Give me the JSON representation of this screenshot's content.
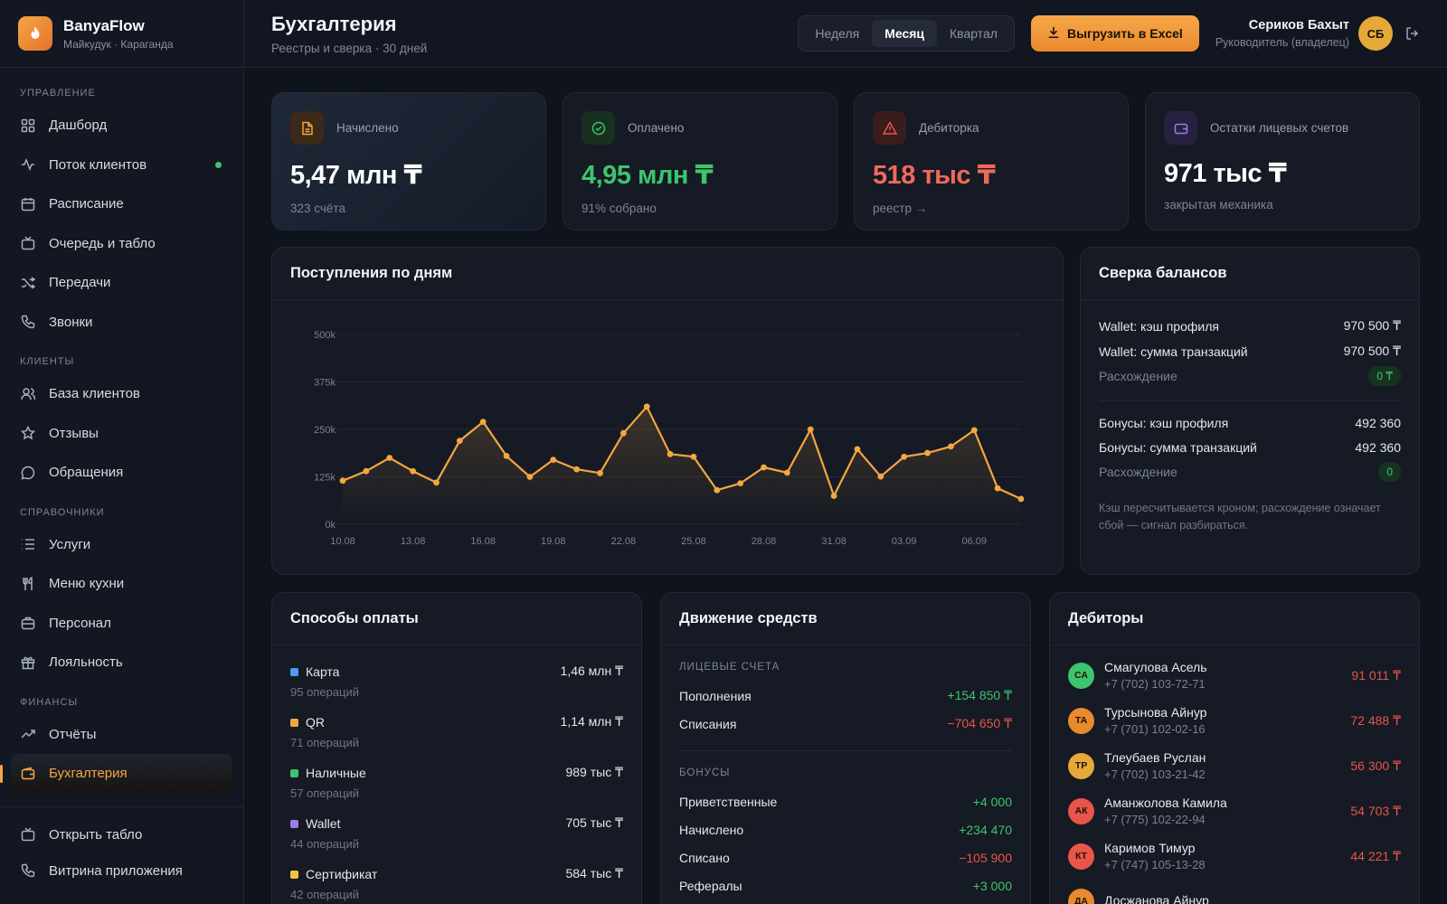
{
  "brand": {
    "name": "BanyaFlow",
    "sub": "Майкудук · Караганда"
  },
  "nav": {
    "sections": [
      {
        "title": "УПРАВЛЕНИЕ",
        "items": [
          "Дашборд",
          "Поток клиентов",
          "Расписание",
          "Очередь и табло",
          "Передачи",
          "Звонки"
        ]
      },
      {
        "title": "КЛИЕНТЫ",
        "items": [
          "База клиентов",
          "Отзывы",
          "Обращения"
        ]
      },
      {
        "title": "СПРАВОЧНИКИ",
        "items": [
          "Услуги",
          "Меню кухни",
          "Персонал",
          "Лояльность"
        ]
      },
      {
        "title": "ФИНАНСЫ",
        "items": [
          "Отчёты",
          "Бухгалтерия"
        ]
      }
    ],
    "bottom": [
      "Открыть табло",
      "Витрина приложения"
    ]
  },
  "header": {
    "title": "Бухгалтерия",
    "subtitle": "Реестры и сверка · 30 дней",
    "periods": [
      "Неделя",
      "Месяц",
      "Квартал"
    ],
    "selected_period": "Месяц",
    "export_label": "Выгрузить в Excel"
  },
  "user": {
    "name": "Сериков Бахыт",
    "role": "Руководитель (владелец)",
    "initials": "СБ"
  },
  "kpis": [
    {
      "label": "Начислено",
      "value": "5,47 млн ₸",
      "note": "323 счёта"
    },
    {
      "label": "Оплачено",
      "value": "4,95 млн ₸",
      "note": "91% собрано"
    },
    {
      "label": "Дебиторка",
      "value": "518 тыс ₸",
      "note": "реестр →"
    },
    {
      "label": "Остатки лицевых счетов",
      "value": "971 тыс ₸",
      "note": "закрытая механика"
    }
  ],
  "chart_title": "Поступления по дням",
  "chart_data": {
    "type": "line",
    "x": [
      "10.08",
      "11.08",
      "12.08",
      "13.08",
      "14.08",
      "15.08",
      "16.08",
      "17.08",
      "18.08",
      "19.08",
      "20.08",
      "21.08",
      "22.08",
      "23.08",
      "24.08",
      "25.08",
      "26.08",
      "27.08",
      "28.08",
      "29.08",
      "30.08",
      "31.08",
      "01.09",
      "02.09",
      "03.09",
      "04.09",
      "05.09",
      "06.09",
      "07.09",
      "08.09"
    ],
    "values": [
      115000,
      140000,
      175000,
      140000,
      110000,
      220000,
      270000,
      180000,
      125000,
      170000,
      145000,
      135000,
      240000,
      310000,
      185000,
      178000,
      90000,
      108000,
      150000,
      136000,
      250000,
      75000,
      198000,
      126000,
      178000,
      188000,
      205000,
      248000,
      95000,
      67000
    ],
    "ylim": [
      0,
      500000
    ],
    "yticks": [
      "0k",
      "125k",
      "250k",
      "375k",
      "500k"
    ],
    "xticks": [
      "10.08",
      "13.08",
      "16.08",
      "19.08",
      "22.08",
      "25.08",
      "28.08",
      "31.08",
      "03.09",
      "06.09"
    ],
    "color": "#f4a640"
  },
  "recon": {
    "title": "Сверка балансов",
    "wallet": [
      {
        "label": "Wallet: кэш профиля",
        "value": "970 500 ₸"
      },
      {
        "label": "Wallet: сумма транзакций",
        "value": "970 500 ₸"
      }
    ],
    "wallet_diff": {
      "label": "Расхождение",
      "value": "0 ₸"
    },
    "bonus": [
      {
        "label": "Бонусы: кэш профиля",
        "value": "492 360"
      },
      {
        "label": "Бонусы: сумма транзакций",
        "value": "492 360"
      }
    ],
    "bonus_diff": {
      "label": "Расхождение",
      "value": "0"
    },
    "note": "Кэш пересчитывается кроном; расхождение означает сбой — сигнал разбираться."
  },
  "payments": {
    "title": "Способы оплаты",
    "items": [
      {
        "name": "Карта",
        "value": "1,46 млн ₸",
        "ops": "95 операций",
        "color": "#4a9af0"
      },
      {
        "name": "QR",
        "value": "1,14 млн ₸",
        "ops": "71 операций",
        "color": "#f4a640"
      },
      {
        "name": "Наличные",
        "value": "989 тыс ₸",
        "ops": "57 операций",
        "color": "#3ec46d"
      },
      {
        "name": "Wallet",
        "value": "705 тыс ₸",
        "ops": "44 операций",
        "color": "#9b7ee8"
      },
      {
        "name": "Сертификат",
        "value": "584 тыс ₸",
        "ops": "42 операций",
        "color": "#f0c43a"
      }
    ]
  },
  "flow": {
    "title": "Движение средств",
    "accounts_label": "ЛИЦЕВЫЕ СЧЕТА",
    "accounts": [
      {
        "label": "Пополнения",
        "value": "+154 850 ₸",
        "sign": "pos"
      },
      {
        "label": "Списания",
        "value": "−704 650 ₸",
        "sign": "neg"
      }
    ],
    "bonus_label": "БОНУСЫ",
    "bonus": [
      {
        "label": "Приветственные",
        "value": "+4 000",
        "sign": "pos"
      },
      {
        "label": "Начислено",
        "value": "+234 470",
        "sign": "pos"
      },
      {
        "label": "Списано",
        "value": "−105 900",
        "sign": "neg"
      },
      {
        "label": "Рефералы",
        "value": "+3 000",
        "sign": "pos"
      }
    ]
  },
  "debtors": {
    "title": "Дебиторы",
    "items": [
      {
        "initials": "СА",
        "name": "Смагулова Асель",
        "phone": "+7 (702) 103-72-71",
        "amount": "91 011 ₸",
        "color": "#3ec46d"
      },
      {
        "initials": "ТА",
        "name": "Турсынова Айнур",
        "phone": "+7 (701) 102-02-16",
        "amount": "72 488 ₸",
        "color": "#e98a2e"
      },
      {
        "initials": "ТР",
        "name": "Тлеубаев Руслан",
        "phone": "+7 (702) 103-21-42",
        "amount": "56 300 ₸",
        "color": "#e5a93a"
      },
      {
        "initials": "АК",
        "name": "Аманжолова Камила",
        "phone": "+7 (775) 102-22-94",
        "amount": "54 703 ₸",
        "color": "#e8554a"
      },
      {
        "initials": "КТ",
        "name": "Каримов Тимур",
        "phone": "+7 (747) 105-13-28",
        "amount": "44 221 ₸",
        "color": "#e8554a"
      },
      {
        "initials": "ДА",
        "name": "Досжанова Айнур",
        "phone": "",
        "amount": "",
        "color": "#e98a2e"
      }
    ]
  }
}
